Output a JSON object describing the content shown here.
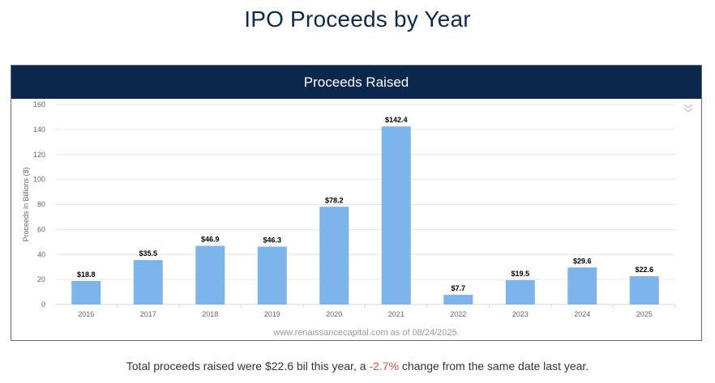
{
  "page_title": "IPO Proceeds by Year",
  "chart_header": "Proceeds Raised",
  "source_note": "www.renaissancecapital.com as of 08/24/2025",
  "footer": {
    "prefix": "Total proceeds raised were $22.6 bil this year, a ",
    "change": "-2.7%",
    "suffix": " change from the same date last year."
  },
  "colors": {
    "bar": "#7cb5ec",
    "header_bg": "#0b284c",
    "negative": "#e8474c",
    "title": "#0b2a4f"
  },
  "icons": {
    "chart_menu": "double-chevron-down-icon"
  },
  "chart_data": {
    "type": "bar",
    "title": "Proceeds Raised",
    "ylabel": "Proceeds in Billions ($)",
    "xlabel": "",
    "ylim": [
      0,
      160
    ],
    "yticks": [
      0,
      20,
      40,
      60,
      80,
      100,
      120,
      140,
      160
    ],
    "grid": true,
    "categories": [
      "2016",
      "2017",
      "2018",
      "2019",
      "2020",
      "2021",
      "2022",
      "2023",
      "2024",
      "2025"
    ],
    "values": [
      18.8,
      35.5,
      46.9,
      46.3,
      78.2,
      142.4,
      7.7,
      19.5,
      29.6,
      22.6
    ],
    "data_labels": [
      "$18.8",
      "$35.5",
      "$46.9",
      "$46.3",
      "$78.2",
      "$142.4",
      "$7.7",
      "$19.5",
      "$29.6",
      "$22.6"
    ]
  }
}
